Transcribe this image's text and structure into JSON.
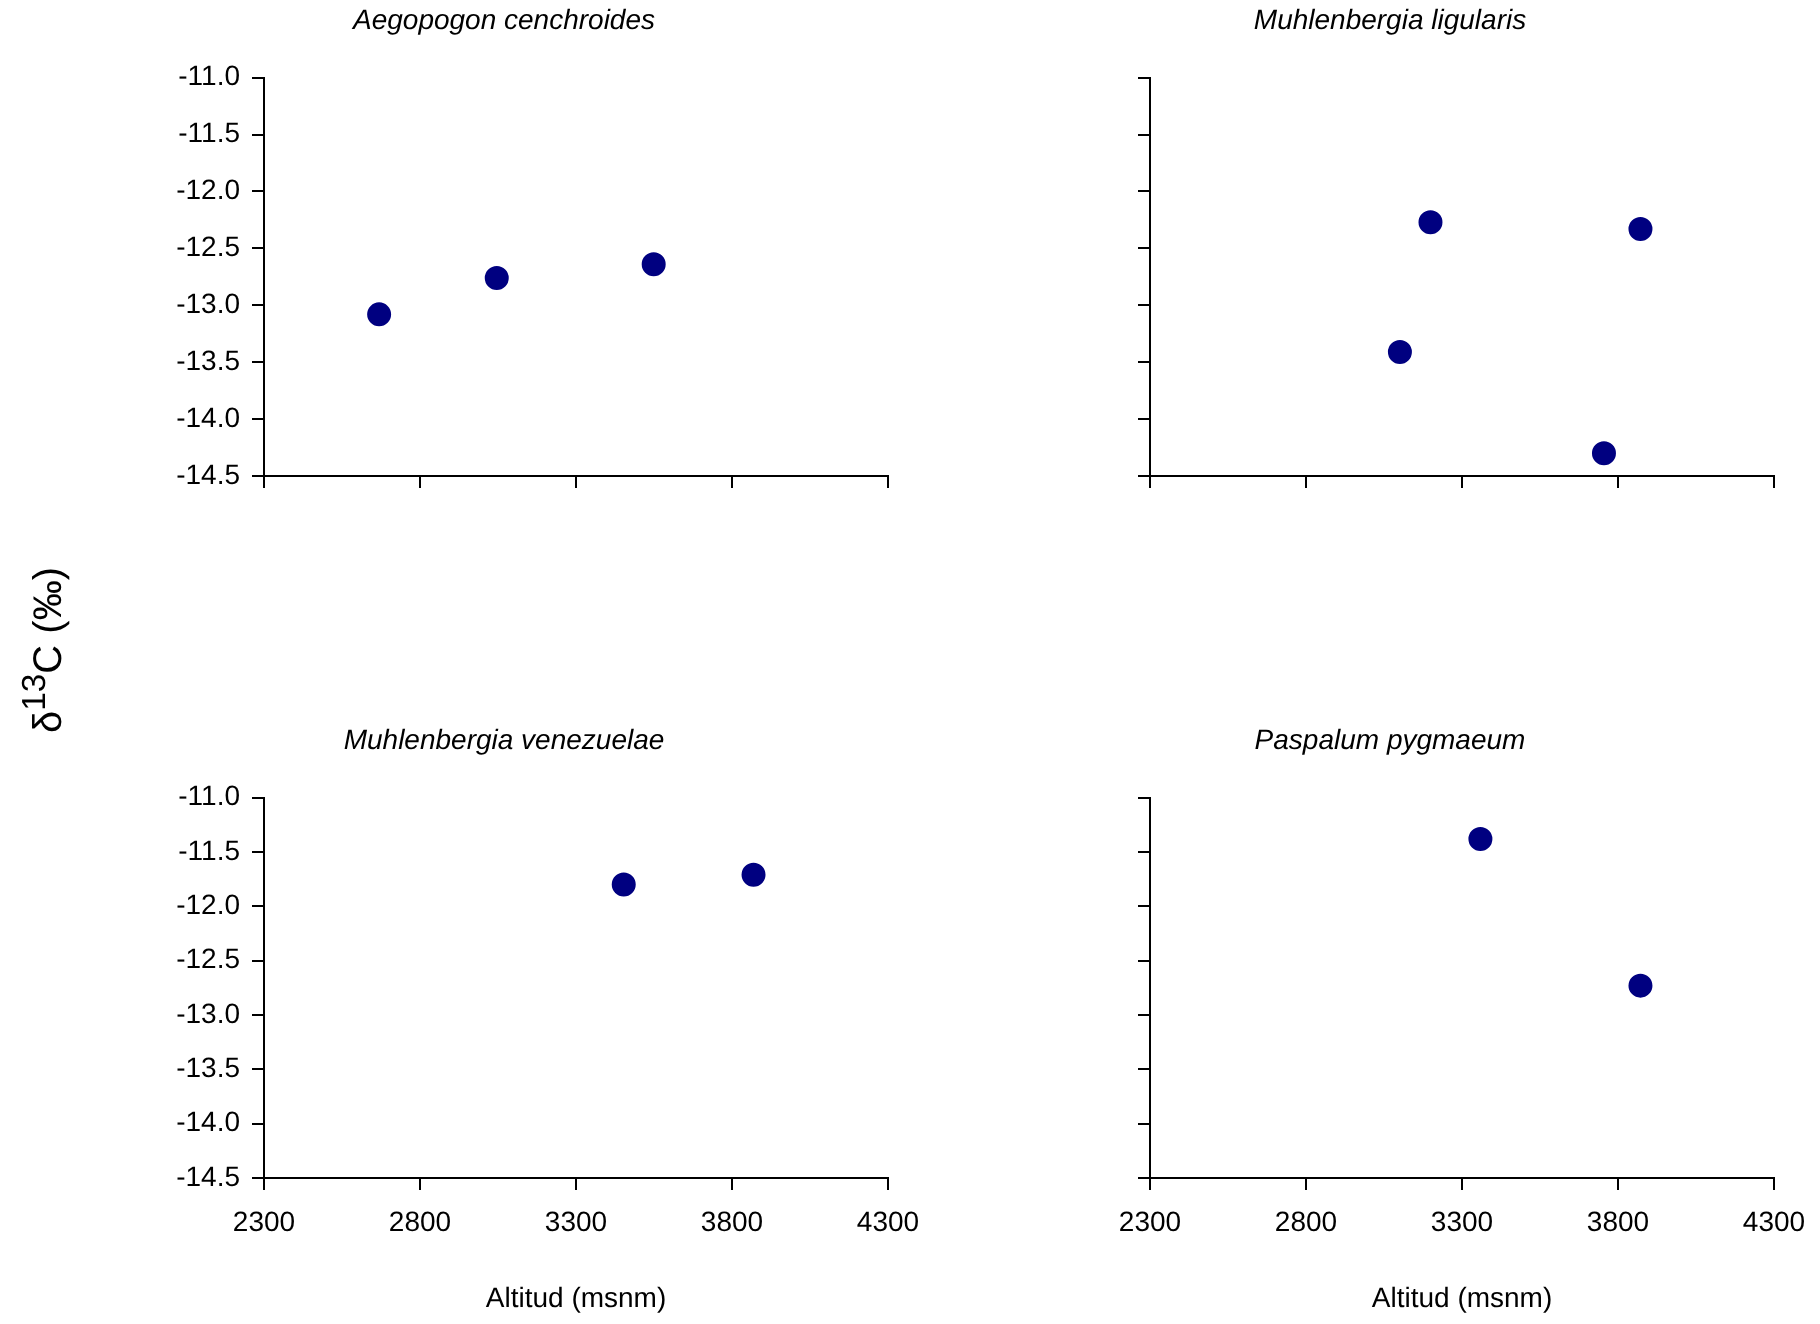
{
  "chart_data": [
    {
      "type": "scatter",
      "title": "Aegopogon cenchroides",
      "ylabel": "δ$^{13}$C (‰)",
      "x": [
        2669,
        3046,
        3549
      ],
      "values": [
        -13.08,
        -12.76,
        -12.64
      ],
      "color": "#000080",
      "marker": "circle",
      "xlim": [
        2300,
        4300
      ],
      "xticks": [
        {
          "value": 2300,
          "label": null
        },
        {
          "value": 2800,
          "label": null
        },
        {
          "value": 3300,
          "label": null
        },
        {
          "value": 3800,
          "label": null
        },
        {
          "value": 4300,
          "label": null
        }
      ],
      "ylim": [
        -14.5,
        -11
      ],
      "yticks": [
        {
          "value": -14.5,
          "label": "-14.5"
        },
        {
          "value": -14,
          "label": "-14.0"
        },
        {
          "value": -13.5,
          "label": "-13.5"
        },
        {
          "value": -13,
          "label": "-13.0"
        },
        {
          "value": -12.5,
          "label": "-12.5"
        },
        {
          "value": -12,
          "label": "-12.0"
        },
        {
          "value": -11.5,
          "label": "-11.5"
        },
        {
          "value": -11,
          "label": "-11.0"
        }
      ],
      "tick_labels": "y",
      "grid": false,
      "legend": false
    },
    {
      "type": "scatter",
      "title": "Muhlenbergia ligularis",
      "x": [
        3101,
        3199,
        3755,
        3872
      ],
      "values": [
        -13.41,
        -12.27,
        -14.3,
        -12.33
      ],
      "color": "#000080",
      "marker": "circle",
      "xlim": [
        2300,
        4300
      ],
      "xticks": [
        {
          "value": 2300,
          "label": null
        },
        {
          "value": 2800,
          "label": null
        },
        {
          "value": 3300,
          "label": null
        },
        {
          "value": 3800,
          "label": null
        },
        {
          "value": 4300,
          "label": null
        }
      ],
      "ylim": [
        -14.5,
        -11
      ],
      "yticks": [
        {
          "value": -14.5,
          "label": null
        },
        {
          "value": -14,
          "label": null
        },
        {
          "value": -13.5,
          "label": null
        },
        {
          "value": -13,
          "label": null
        },
        {
          "value": -12.5,
          "label": null
        },
        {
          "value": -12,
          "label": null
        },
        {
          "value": -11.5,
          "label": null
        },
        {
          "value": -11,
          "label": null
        }
      ],
      "tick_labels": false,
      "grid": false,
      "legend": false
    },
    {
      "type": "scatter",
      "title": "Muhlenbergia venezuelae",
      "xlabel": "Altitud (msnm)",
      "x": [
        3453,
        3869
      ],
      "values": [
        -11.8,
        -11.71
      ],
      "color": "#000080",
      "marker": "circle",
      "xlim": [
        2300,
        4300
      ],
      "xticks": [
        2300,
        2800,
        3300,
        3800,
        4300
      ],
      "ylim": [
        -14.5,
        -11
      ],
      "yticks": [
        {
          "value": -14.5,
          "label": "-14.5"
        },
        {
          "value": -14,
          "label": "-14.0"
        },
        {
          "value": -13.5,
          "label": "-13.5"
        },
        {
          "value": -13,
          "label": "-13.0"
        },
        {
          "value": -12.5,
          "label": "-12.5"
        },
        {
          "value": -12,
          "label": "-12.0"
        },
        {
          "value": -11.5,
          "label": "-11.5"
        },
        {
          "value": -11,
          "label": "-11.0"
        }
      ],
      "grid": false,
      "legend": false
    },
    {
      "type": "scatter",
      "title": "Paspalum pygmaeum",
      "xlabel": "Altitud (msnm)",
      "x": [
        3359,
        3872
      ],
      "values": [
        -11.38,
        -12.73
      ],
      "color": "#000080",
      "marker": "circle",
      "xlim": [
        2300,
        4300
      ],
      "xticks": [
        2300,
        2800,
        3300,
        3800,
        4300
      ],
      "ylim": [
        -14.5,
        -11
      ],
      "yticks": [
        {
          "value": -14.5,
          "label": null
        },
        {
          "value": -14,
          "label": null
        },
        {
          "value": -13.5,
          "label": null
        },
        {
          "value": -13,
          "label": null
        },
        {
          "value": -12.5,
          "label": null
        },
        {
          "value": -12,
          "label": null
        },
        {
          "value": -11.5,
          "label": null
        },
        {
          "value": -11,
          "label": null
        }
      ],
      "tick_labels": "x",
      "grid": false,
      "legend": false
    }
  ]
}
